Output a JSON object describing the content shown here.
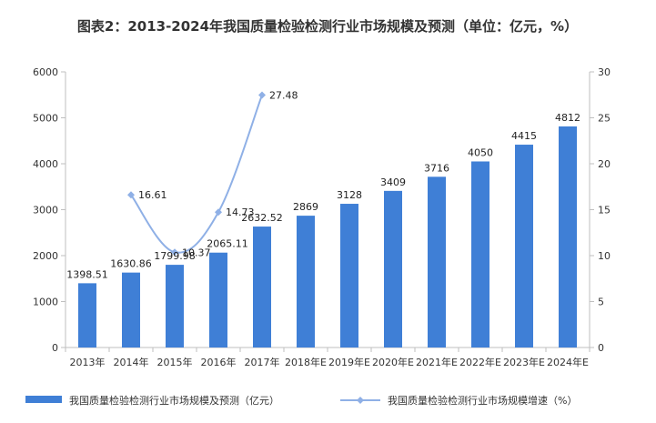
{
  "chart_data": {
    "type": "bar",
    "title": "图表2：2013-2024年我国质量检验检测行业市场规模及预测（单位：亿元，%）",
    "categories": [
      "2013年",
      "2014年",
      "2015年",
      "2016年",
      "2017年",
      "2018年E",
      "2019年E",
      "2020年E",
      "2021年E",
      "2022年E",
      "2023年E",
      "2024年E"
    ],
    "series": [
      {
        "name": "我国质量检验检测行业市场规模及预测（亿元）",
        "type": "bar",
        "axis": "left",
        "values": [
          1398.51,
          1630.86,
          1799.98,
          2065.11,
          2632.52,
          2869,
          3128,
          3409,
          3716,
          4050,
          4415,
          4812
        ],
        "labels": [
          "1398.51",
          "1630.86",
          "1799.98",
          "2065.11",
          "2632.52",
          "2869",
          "3128",
          "3409",
          "3716",
          "4050",
          "4415",
          "4812"
        ]
      },
      {
        "name": "我国质量检验检测行业市场规模增速（%）",
        "type": "line",
        "axis": "right",
        "values": [
          null,
          16.61,
          10.37,
          14.73,
          27.48,
          null,
          null,
          null,
          null,
          null,
          null,
          null
        ],
        "labels": [
          null,
          "16.61",
          "10.37",
          "14.73",
          "27.48",
          null,
          null,
          null,
          null,
          null,
          null,
          null
        ]
      }
    ],
    "y_left": {
      "min": 0,
      "max": 6000,
      "step": 1000,
      "ticks": [
        "0",
        "1000",
        "2000",
        "3000",
        "4000",
        "5000",
        "6000"
      ]
    },
    "y_right": {
      "min": 0,
      "max": 30,
      "step": 5,
      "ticks": [
        "0",
        "5",
        "10",
        "15",
        "20",
        "25",
        "30"
      ]
    },
    "legend_position": "bottom",
    "grid": false,
    "colors": {
      "bar": "#3f7fd6",
      "line": "#8fb0e6",
      "axis": "#bfbfbf",
      "text": "#333333"
    }
  }
}
